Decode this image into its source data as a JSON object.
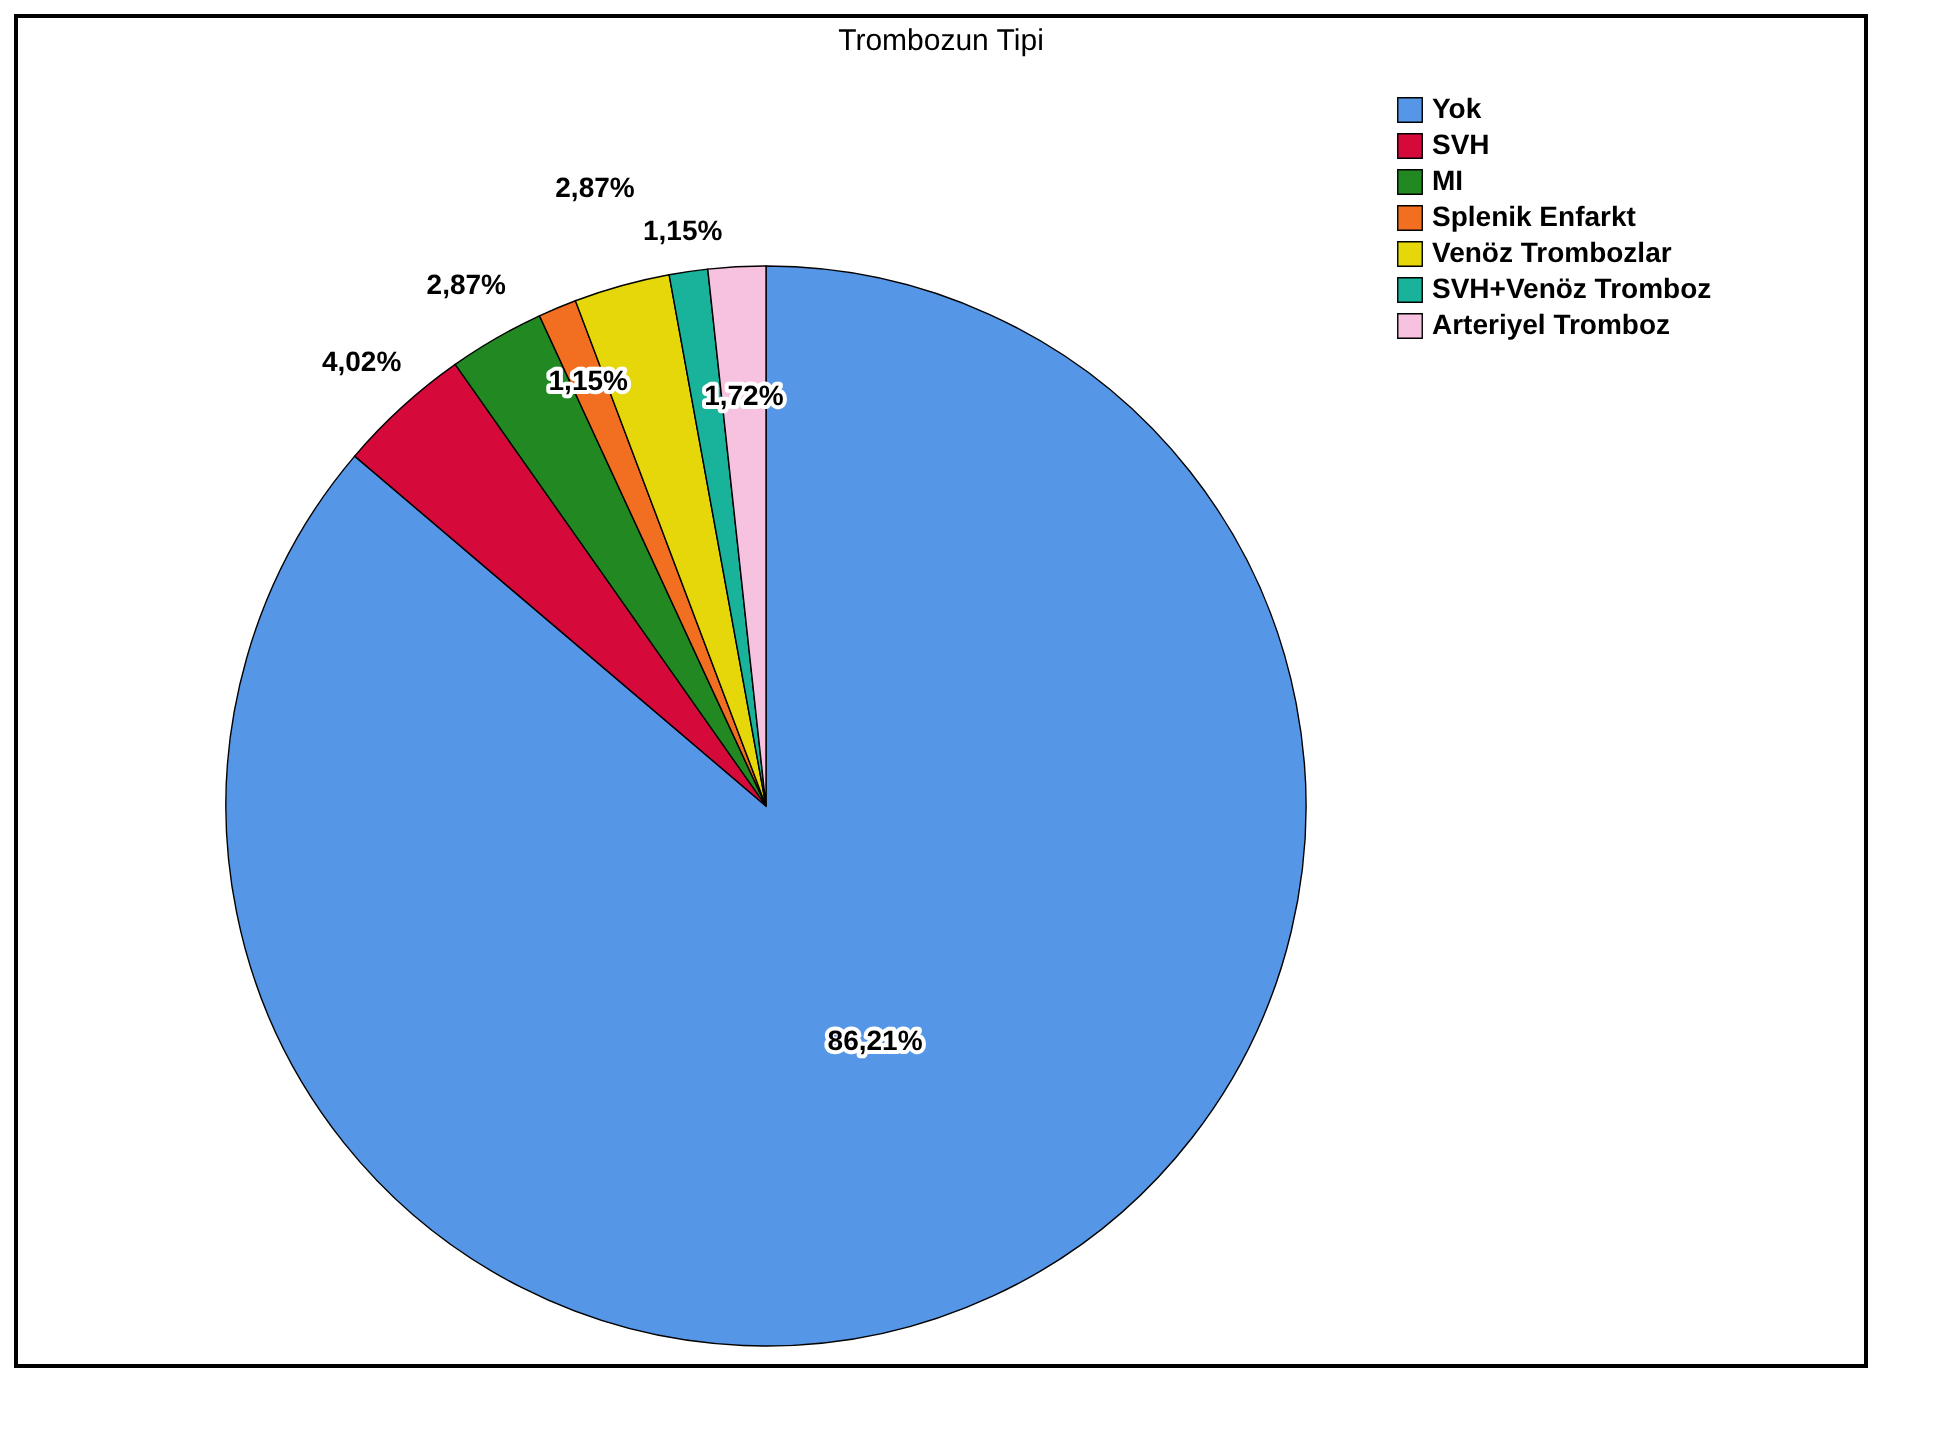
{
  "chart_data": {
    "type": "pie",
    "title": "Trombozun Tipi",
    "categories": [
      "Yok",
      "SVH",
      "MI",
      "Splenik Enfarkt",
      "Venöz Trombozlar",
      "SVH+Venöz Tromboz",
      "Arteriyel Tromboz"
    ],
    "values": [
      86.21,
      4.02,
      2.87,
      1.15,
      2.87,
      1.15,
      1.72
    ],
    "value_labels": [
      "86,21%",
      "4,02%",
      "2,87%",
      "1,15%",
      "2,87%",
      "1,15%",
      "1,72%"
    ],
    "colors": [
      "#5596e6",
      "#d6093b",
      "#228822",
      "#f26f22",
      "#e6d70b",
      "#19b29a",
      "#f7c1e0"
    ],
    "legend": "top right"
  }
}
